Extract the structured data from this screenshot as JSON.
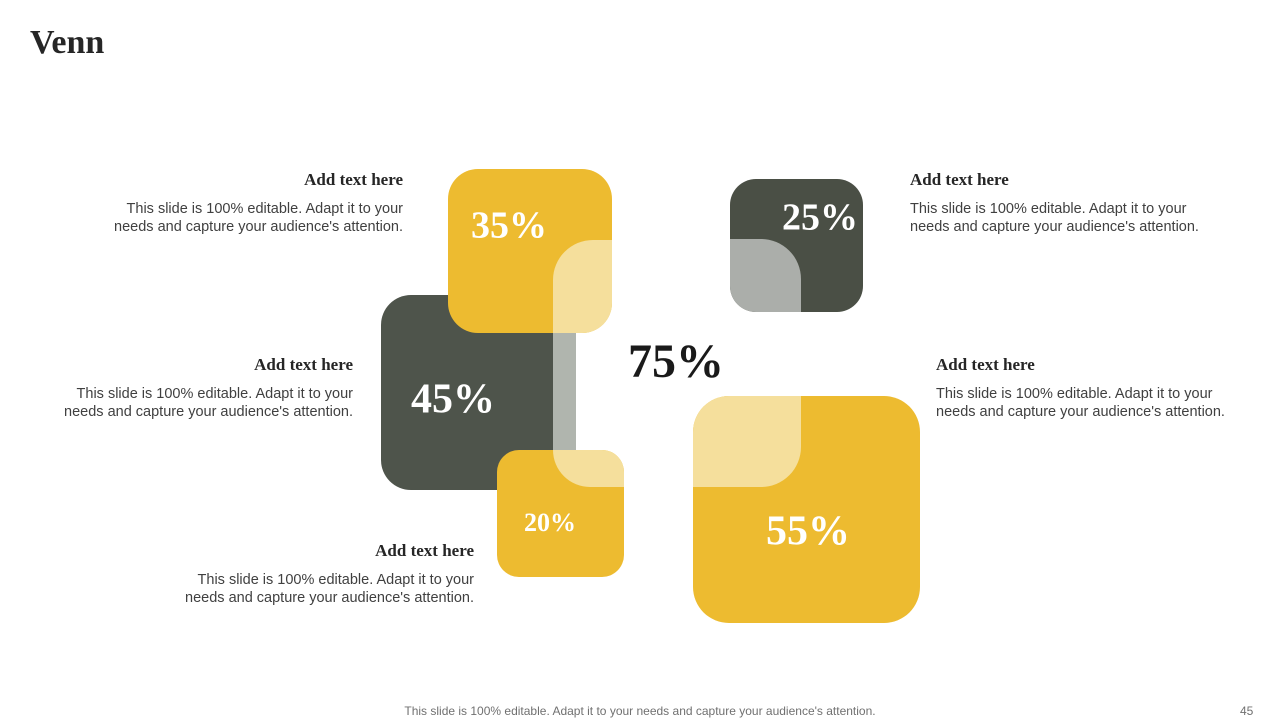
{
  "title": "Venn",
  "center_label": "75%",
  "items": [
    {
      "label": "35%",
      "heading": "Add text here",
      "body": [
        "This slide is 100% editable. Adapt it to your",
        "needs and capture your audience's attention."
      ]
    },
    {
      "label": "45%",
      "heading": "Add text here",
      "body": [
        "This slide is 100% editable. Adapt it to your",
        "needs and capture your audience's attention."
      ]
    },
    {
      "label": "20%",
      "heading": "Add text here",
      "body": [
        "This slide is 100% editable. Adapt it to your",
        "needs and capture your audience's attention."
      ]
    },
    {
      "label": "25%",
      "heading": "Add text here",
      "body": [
        "This slide is 100% editable. Adapt it to your",
        "needs and capture your audience's attention."
      ]
    },
    {
      "label": "55%",
      "heading": "Add text here",
      "body": [
        "This slide is 100% editable. Adapt it to your",
        "needs and capture your audience's attention."
      ]
    }
  ],
  "footer": "This slide is 100% editable. Adapt it to your needs and capture your audience's attention.",
  "page_number": "45"
}
